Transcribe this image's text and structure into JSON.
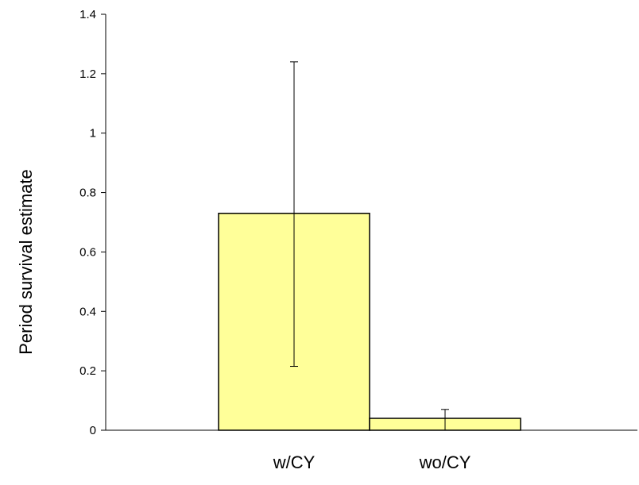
{
  "chart_data": {
    "type": "bar",
    "title": "",
    "xlabel": "",
    "ylabel": "Period  survival estimate",
    "categories": [
      "w/CY",
      "wo/CY"
    ],
    "values": [
      0.73,
      0.04
    ],
    "error_bars": [
      {
        "lower": 0.215,
        "upper": 1.24
      },
      {
        "lower": 0.0,
        "upper": 0.07
      }
    ],
    "ylim": [
      0,
      1.4
    ],
    "yticks": [
      0,
      0.2,
      0.4,
      0.6,
      0.8,
      1,
      1.2,
      1.4
    ],
    "ytick_labels": [
      "0",
      "0.2",
      "0.4",
      "0.6",
      "0.8",
      "1",
      "1.2",
      "1.4"
    ],
    "grid": false,
    "legend": "none",
    "colors": {
      "bar_fill": "#ffff99",
      "bar_stroke": "#000000",
      "axis": "#000000"
    }
  }
}
